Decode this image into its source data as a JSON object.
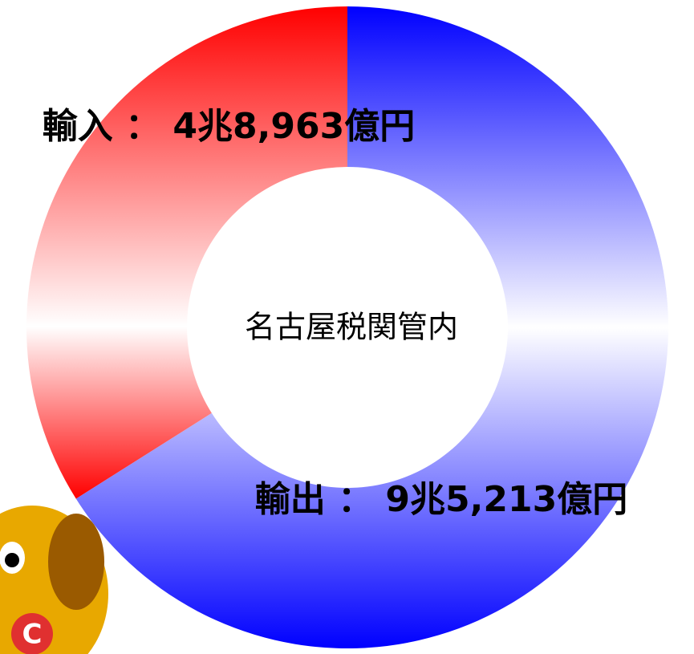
{
  "chart_data": {
    "type": "donut",
    "center_label": "名古屋税関管内",
    "values": [
      95213,
      48963
    ],
    "value_labels": [
      "輸出 ： 9兆5,213億円",
      "輸入 ： 4兆8,963億円"
    ],
    "colors": [
      "#0000ff",
      "#ff0000"
    ]
  }
}
